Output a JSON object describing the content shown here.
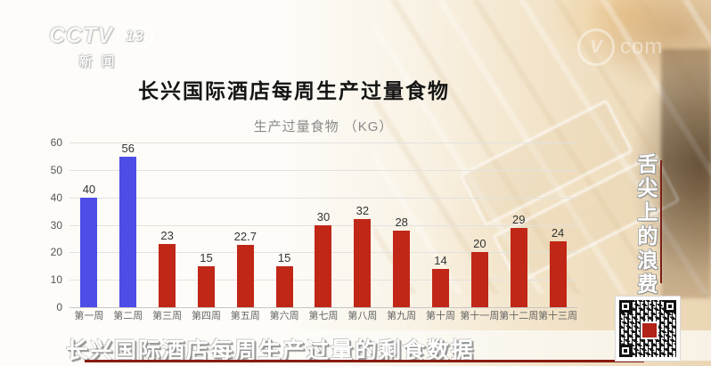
{
  "channel": {
    "logo_main": "CCTV",
    "logo_number": "13",
    "logo_sub": "新闻"
  },
  "watermark": {
    "text": "com",
    "full_name": "cctv.com"
  },
  "header": {
    "title": "长兴国际酒店每周生产过量食物",
    "subtitle": "生产过量食物 （KG）"
  },
  "side_banner": {
    "text": "舌尖上的浪费"
  },
  "caption": {
    "text": "长兴国际酒店每周生产过量的剩食数据"
  },
  "colors": {
    "bar_blue": "#4d4de8",
    "bar_red": "#c02717",
    "accent_red_line": "#8a1c10",
    "banner_line": "#7a2018"
  },
  "chart_data": {
    "type": "bar",
    "title": "长兴国际酒店每周生产过量食物",
    "ylabel": "生产过量食物 （KG）",
    "xlabel": "",
    "categories": [
      "第一周",
      "第二周",
      "第三周",
      "第四周",
      "第五周",
      "第六周",
      "第七周",
      "第八周",
      "第九周",
      "第十周",
      "第十一周",
      "第十二周",
      "第十三周"
    ],
    "values": [
      40,
      56,
      23,
      15,
      22.7,
      15,
      30,
      32,
      28,
      14,
      20,
      29,
      24
    ],
    "bar_colors": [
      "#4d4de8",
      "#4d4de8",
      "#c02717",
      "#c02717",
      "#c02717",
      "#c02717",
      "#c02717",
      "#c02717",
      "#c02717",
      "#c02717",
      "#c02717",
      "#c02717",
      "#c02717"
    ],
    "yticks": [
      0,
      10,
      20,
      30,
      40,
      50,
      60
    ],
    "ylim": [
      0,
      60
    ],
    "grid": true,
    "legend_position": "none",
    "value_labels_shown": true
  }
}
